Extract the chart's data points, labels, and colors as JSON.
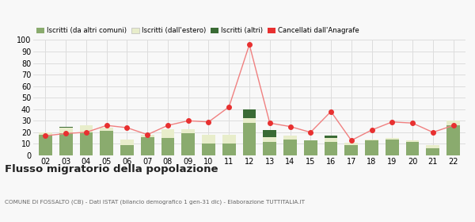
{
  "years": [
    "02",
    "03",
    "04",
    "05",
    "06",
    "07",
    "08",
    "09",
    "10",
    "11",
    "12",
    "13",
    "14",
    "15",
    "16",
    "17",
    "18",
    "19",
    "20",
    "21",
    "22"
  ],
  "iscritti_comuni": [
    18,
    19,
    20,
    21,
    9,
    16,
    15,
    19,
    10,
    10,
    28,
    12,
    14,
    13,
    12,
    9,
    13,
    14,
    12,
    6,
    26
  ],
  "iscritti_estero": [
    2,
    5,
    6,
    3,
    5,
    2,
    8,
    4,
    8,
    8,
    4,
    4,
    3,
    0,
    3,
    2,
    1,
    1,
    1,
    3,
    4
  ],
  "iscritti_altri": [
    0,
    1,
    0,
    0,
    0,
    0,
    0,
    0,
    0,
    0,
    8,
    6,
    0,
    0,
    2,
    0,
    0,
    0,
    0,
    0,
    0
  ],
  "cancellati": [
    17,
    19,
    20,
    26,
    24,
    18,
    26,
    30,
    29,
    42,
    96,
    28,
    25,
    20,
    38,
    13,
    22,
    29,
    28,
    20,
    26
  ],
  "color_comuni": "#8aab6e",
  "color_estero": "#e8edcb",
  "color_altri": "#3a6b35",
  "color_cancellati": "#e83030",
  "color_line": "#f08080",
  "legend_comuni": "Iscritti (da altri comuni)",
  "legend_estero": "Iscritti (dall'estero)",
  "legend_altri": "Iscritti (altri)",
  "legend_cancellati": "Cancellati dall'Anagrafe",
  "title": "Flusso migratorio della popolazione",
  "subtitle": "COMUNE DI FOSSALTO (CB) - Dati ISTAT (bilancio demografico 1 gen-31 dic) - Elaborazione TUTTITALIA.IT",
  "ylim": [
    0,
    100
  ],
  "yticks": [
    0,
    10,
    20,
    30,
    40,
    50,
    60,
    70,
    80,
    90,
    100
  ],
  "bg_color": "#f8f8f8",
  "grid_color": "#dddddd"
}
